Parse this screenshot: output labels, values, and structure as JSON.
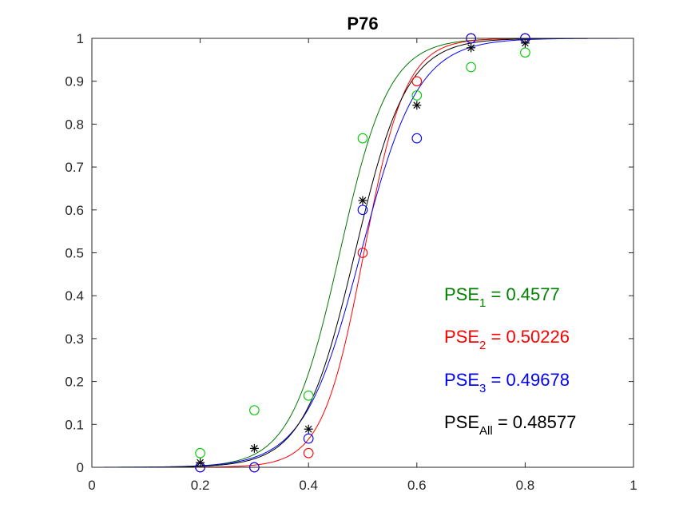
{
  "chart_data": {
    "type": "scatter",
    "title": "P76",
    "xlabel": "",
    "ylabel": "",
    "xlim": [
      0,
      1
    ],
    "ylim": [
      0,
      1
    ],
    "x_ticks": [
      0,
      0.2,
      0.4,
      0.6,
      0.8,
      1
    ],
    "x_tick_labels": [
      "0",
      "0.2",
      "0.4",
      "0.6",
      "0.8",
      "1"
    ],
    "y_ticks": [
      0,
      0.1,
      0.2,
      0.3,
      0.4,
      0.5,
      0.6,
      0.7,
      0.8,
      0.9,
      1
    ],
    "y_tick_labels": [
      "0",
      "0.1",
      "0.2",
      "0.3",
      "0.4",
      "0.5",
      "0.6",
      "0.7",
      "0.8",
      "0.9",
      "1"
    ],
    "grid": false,
    "series": [
      {
        "color": "#00cc00",
        "curve_color": "#007700",
        "marker": "circle",
        "pse": 0.4577,
        "slope": 22,
        "points": [
          {
            "x": 0.2,
            "y": 0.033
          },
          {
            "x": 0.3,
            "y": 0.133
          },
          {
            "x": 0.4,
            "y": 0.167
          },
          {
            "x": 0.5,
            "y": 0.767
          },
          {
            "x": 0.6,
            "y": 0.867
          },
          {
            "x": 0.7,
            "y": 0.933
          },
          {
            "x": 0.8,
            "y": 0.967
          }
        ]
      },
      {
        "color": "#ff0000",
        "curve_color": "#ff0000",
        "marker": "circle",
        "pse": 0.50226,
        "slope": 26,
        "points": [
          {
            "x": 0.2,
            "y": 0.0
          },
          {
            "x": 0.3,
            "y": 0.0
          },
          {
            "x": 0.4,
            "y": 0.033
          },
          {
            "x": 0.5,
            "y": 0.5
          },
          {
            "x": 0.6,
            "y": 0.9
          },
          {
            "x": 0.7,
            "y": 1.0
          },
          {
            "x": 0.8,
            "y": 1.0
          }
        ]
      },
      {
        "color": "#0000ff",
        "curve_color": "#0000ff",
        "marker": "circle",
        "pse": 0.49678,
        "slope": 19,
        "points": [
          {
            "x": 0.2,
            "y": 0.0
          },
          {
            "x": 0.3,
            "y": 0.0
          },
          {
            "x": 0.4,
            "y": 0.067
          },
          {
            "x": 0.5,
            "y": 0.6
          },
          {
            "x": 0.6,
            "y": 0.767
          },
          {
            "x": 0.7,
            "y": 1.0
          },
          {
            "x": 0.8,
            "y": 1.0
          }
        ]
      },
      {
        "color": "#000000",
        "curve_color": "#000000",
        "marker": "asterisk",
        "pse": 0.48577,
        "slope": 21,
        "points": [
          {
            "x": 0.2,
            "y": 0.011
          },
          {
            "x": 0.3,
            "y": 0.044
          },
          {
            "x": 0.4,
            "y": 0.089
          },
          {
            "x": 0.5,
            "y": 0.622
          },
          {
            "x": 0.6,
            "y": 0.844
          },
          {
            "x": 0.7,
            "y": 0.978
          },
          {
            "x": 0.8,
            "y": 0.989
          }
        ]
      }
    ],
    "annotations": [
      {
        "prefix": "PSE",
        "subscript": "1",
        "value_text": " = 0.4577",
        "color": "#008000"
      },
      {
        "prefix": "PSE",
        "subscript": "2",
        "value_text": " = 0.50226",
        "color": "#ff0000"
      },
      {
        "prefix": "PSE",
        "subscript": "3",
        "value_text": " = 0.49678",
        "color": "#0000ff"
      },
      {
        "prefix": "PSE",
        "subscript": "All",
        "value_text": " = 0.48577",
        "color": "#000000"
      }
    ]
  }
}
